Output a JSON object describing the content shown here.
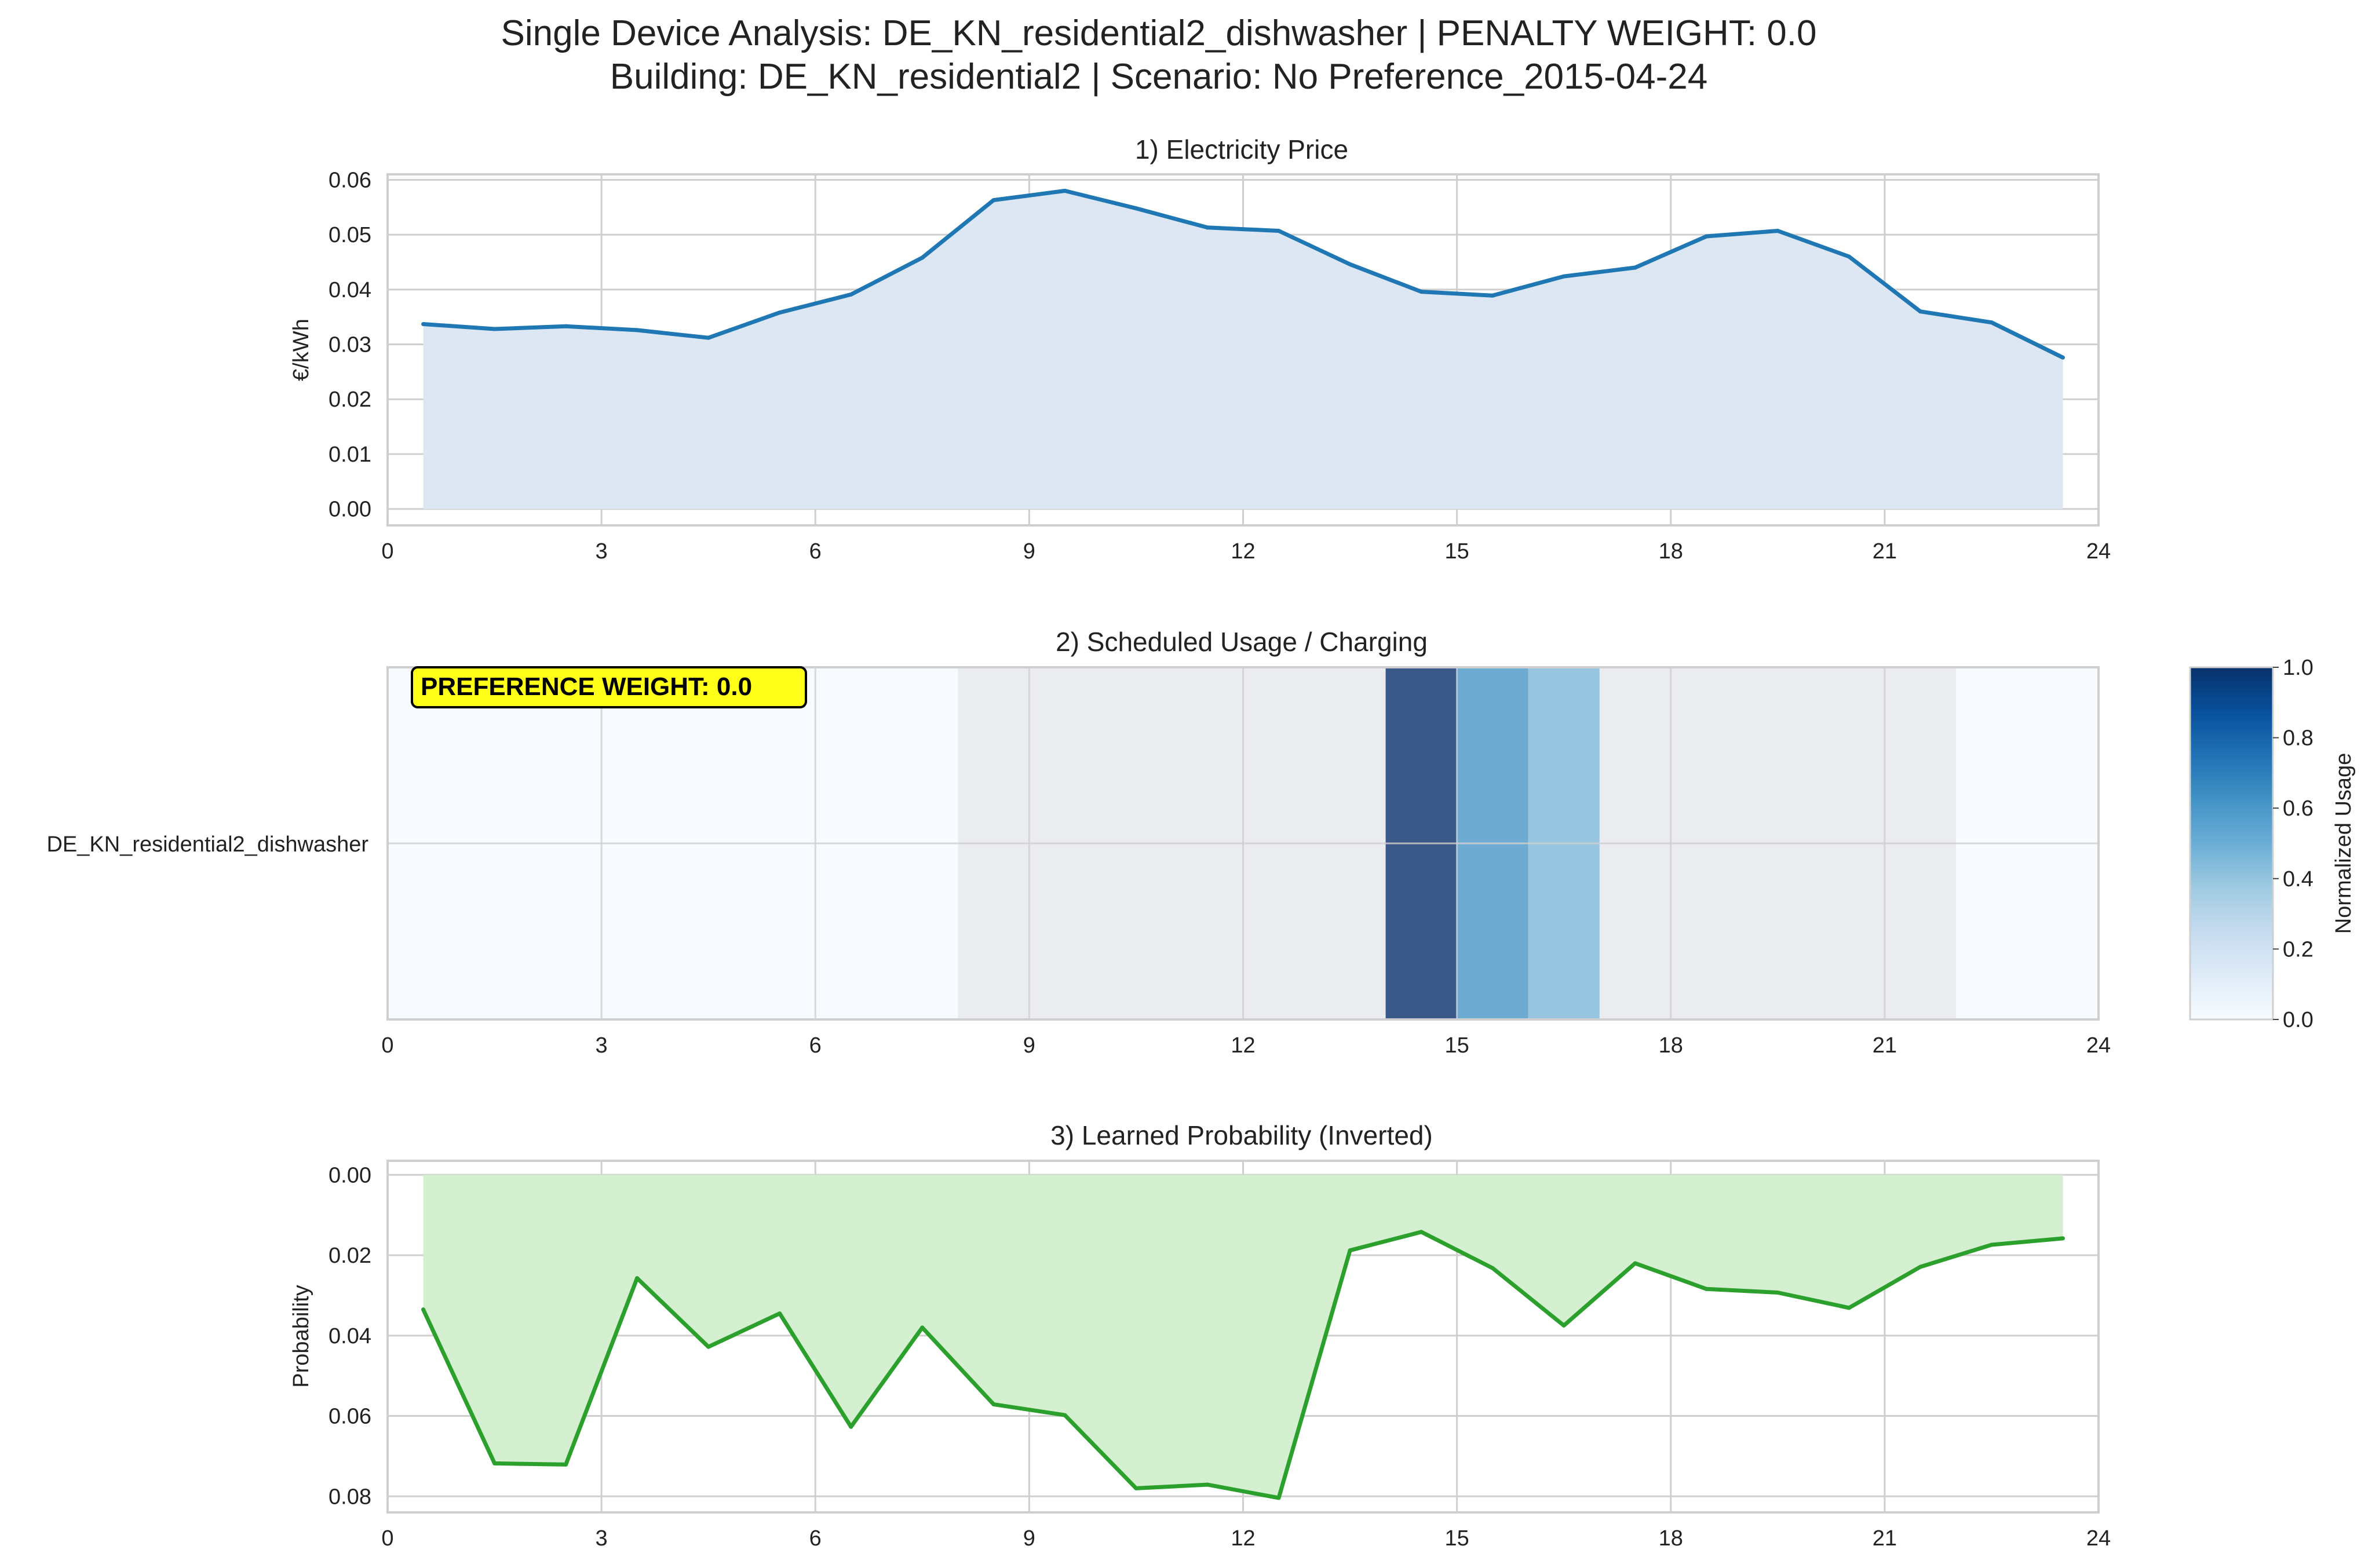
{
  "figure": {
    "title_line1": "Single Device Analysis: DE_KN_residential2_dishwasher | PENALTY WEIGHT: 0.0",
    "title_line2": "Building: DE_KN_residential2 | Scenario: No Preference_2015-04-24"
  },
  "colors": {
    "price_line": "#1f77b4",
    "price_fill": "#dde7f3",
    "prob_line": "#2ca02c",
    "prob_fill": "#d4f0d0",
    "off_window": "#f7fbff",
    "allowed_window": "#ebecef",
    "badge_bg": "#ffff1a",
    "grid": "#cfcfcf"
  },
  "chart_data": [
    {
      "type": "area",
      "title": "1) Electricity Price",
      "xlabel": "",
      "ylabel": "€/kWh",
      "xlim": [
        0,
        24
      ],
      "ylim": [
        -0.003,
        0.061
      ],
      "xticks": [
        "0",
        "3",
        "6",
        "9",
        "12",
        "15",
        "18",
        "21",
        "24"
      ],
      "yticks": [
        "0.00",
        "0.01",
        "0.02",
        "0.03",
        "0.04",
        "0.05",
        "0.06"
      ],
      "grid": true,
      "x": [
        0.5,
        1.5,
        2.5,
        3.5,
        4.5,
        5.5,
        6.5,
        7.5,
        8.5,
        9.5,
        10.5,
        11.5,
        12.5,
        13.5,
        14.5,
        15.5,
        16.5,
        17.5,
        18.5,
        19.5,
        20.5,
        21.5,
        22.5,
        23.5
      ],
      "values": [
        0.0337,
        0.0328,
        0.0333,
        0.0326,
        0.0312,
        0.0358,
        0.0391,
        0.0458,
        0.0563,
        0.058,
        0.0548,
        0.0513,
        0.0507,
        0.0446,
        0.0396,
        0.0389,
        0.0424,
        0.044,
        0.0497,
        0.0507,
        0.046,
        0.036,
        0.034,
        0.0276
      ]
    },
    {
      "type": "heatmap",
      "title": "2) Scheduled Usage / Charging",
      "row_label": "DE_KN_residential2_dishwasher",
      "xlim": [
        0,
        24
      ],
      "xticks": [
        "0",
        "3",
        "6",
        "9",
        "12",
        "15",
        "18",
        "21",
        "24"
      ],
      "hours": [
        0,
        1,
        2,
        3,
        4,
        5,
        6,
        7,
        8,
        9,
        10,
        11,
        12,
        13,
        14,
        15,
        16,
        17,
        18,
        19,
        20,
        21,
        22,
        23
      ],
      "values": [
        0,
        0,
        0,
        0,
        0,
        0,
        0,
        0,
        0,
        0,
        0,
        0,
        0,
        0,
        1.0,
        0.6,
        0.45,
        0,
        0,
        0,
        0,
        0,
        0,
        0
      ],
      "allowed_window": [
        8,
        22
      ],
      "badge": "PREFERENCE WEIGHT: 0.0",
      "colorbar": {
        "label": "Normalized Usage",
        "range": [
          0,
          1
        ],
        "ticks": [
          "0.0",
          "0.2",
          "0.4",
          "0.6",
          "0.8",
          "1.0"
        ]
      }
    },
    {
      "type": "area",
      "title": "3) Learned Probability (Inverted)",
      "xlabel": "",
      "ylabel": "Probability",
      "xlim": [
        0,
        24
      ],
      "ylim": [
        0.084,
        -0.0035
      ],
      "inverted_y": true,
      "xticks": [
        "0",
        "3",
        "6",
        "9",
        "12",
        "15",
        "18",
        "21",
        "24"
      ],
      "yticks": [
        "0.00",
        "0.02",
        "0.04",
        "0.06",
        "0.08"
      ],
      "grid": true,
      "x": [
        0.5,
        1.5,
        2.5,
        3.5,
        4.5,
        5.5,
        6.5,
        7.5,
        8.5,
        9.5,
        10.5,
        11.5,
        12.5,
        13.5,
        14.5,
        15.5,
        16.5,
        17.5,
        18.5,
        19.5,
        20.5,
        21.5,
        22.5,
        23.5
      ],
      "values": [
        0.0335,
        0.0718,
        0.0721,
        0.0257,
        0.0428,
        0.0345,
        0.0627,
        0.038,
        0.0571,
        0.0598,
        0.078,
        0.0771,
        0.0804,
        0.0188,
        0.0142,
        0.0232,
        0.0375,
        0.022,
        0.0284,
        0.0293,
        0.0331,
        0.0229,
        0.0174,
        0.0158
      ]
    }
  ]
}
